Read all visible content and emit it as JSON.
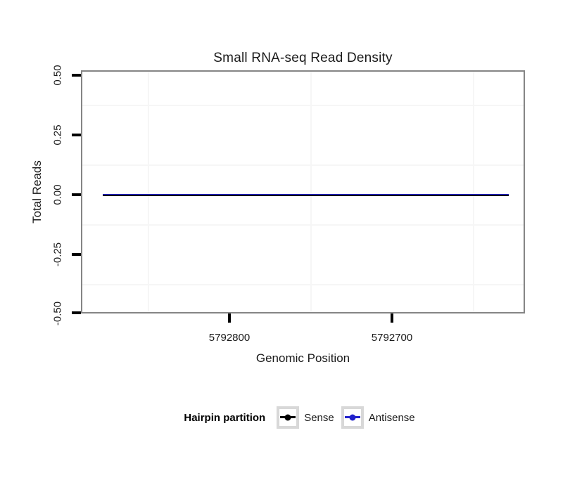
{
  "chart_data": {
    "type": "line",
    "title": "Small RNA-seq Read Density",
    "xlabel": "Genomic Position",
    "ylabel": "Total Reads",
    "x_axis_reversed": true,
    "x_tick_labels": [
      "5792800",
      "5792700"
    ],
    "x_ticks": [
      5792800,
      5792700
    ],
    "x_range_shown": [
      5792891,
      5792618
    ],
    "y_tick_labels": [
      "0.50",
      "0.25",
      "0.00",
      "-0.25",
      "-0.50"
    ],
    "y_ticks": [
      0.5,
      0.25,
      0.0,
      -0.25,
      -0.5
    ],
    "ylim": [
      -0.5,
      0.5
    ],
    "grid": "very light minor gridlines only; white panel with gray border",
    "legend_position": "bottom",
    "series": [
      {
        "name": "Sense",
        "color": "#000000",
        "x": [
          5792879,
          5792631
        ],
        "y": [
          0,
          0
        ]
      },
      {
        "name": "Antisense",
        "color": "#2222CC",
        "x": [
          5792879,
          5792631
        ],
        "y": [
          0,
          0
        ]
      }
    ]
  },
  "legend": {
    "title": "Hairpin partition",
    "entries": [
      {
        "label": "Sense",
        "color": "#000000"
      },
      {
        "label": "Antisense",
        "color": "#2222CC"
      }
    ]
  },
  "colors": {
    "panel_border": "#858585",
    "tick_marks": "#000000",
    "minor_gridline": "#F6F6F6",
    "legend_key_border": "#D8D8D8",
    "text": "#1A1A1A"
  }
}
